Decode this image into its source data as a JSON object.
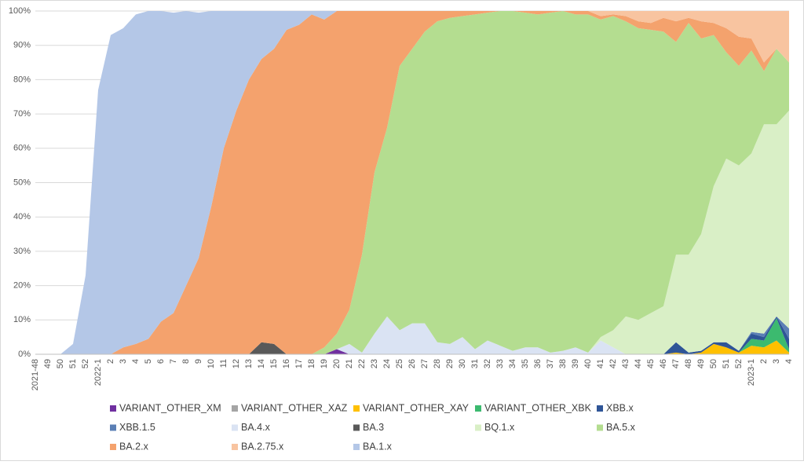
{
  "chart_data": {
    "type": "stacked_area",
    "categories": [
      "2021-48",
      "49",
      "50",
      "51",
      "52",
      "2022-1",
      "2",
      "3",
      "4",
      "5",
      "6",
      "7",
      "8",
      "9",
      "10",
      "11",
      "12",
      "13",
      "14",
      "15",
      "16",
      "17",
      "18",
      "19",
      "20",
      "21",
      "22",
      "23",
      "24",
      "25",
      "26",
      "27",
      "28",
      "29",
      "30",
      "31",
      "32",
      "33",
      "34",
      "35",
      "36",
      "37",
      "38",
      "39",
      "40",
      "41",
      "42",
      "43",
      "44",
      "45",
      "46",
      "47",
      "48",
      "49",
      "50",
      "51",
      "52",
      "2023-1",
      "2",
      "3",
      "4"
    ],
    "ylim": [
      0,
      100
    ],
    "yticks": [
      {
        "value": 0,
        "label": "0%"
      },
      {
        "value": 10,
        "label": "10%"
      },
      {
        "value": 20,
        "label": "20%"
      },
      {
        "value": 30,
        "label": "30%"
      },
      {
        "value": 40,
        "label": "40%"
      },
      {
        "value": 50,
        "label": "50%"
      },
      {
        "value": 60,
        "label": "60%"
      },
      {
        "value": 70,
        "label": "70%"
      },
      {
        "value": 80,
        "label": "80%"
      },
      {
        "value": 90,
        "label": "90%"
      },
      {
        "value": 100,
        "label": "100%"
      }
    ],
    "grid": true,
    "legend": "bottom",
    "series": [
      {
        "name": "VARIANT_OTHER_XM",
        "color": "#7030a0",
        "values": [
          0,
          0,
          0,
          0,
          0,
          0,
          0,
          0,
          0,
          0,
          0,
          0,
          0,
          0,
          0,
          0,
          0,
          0,
          0,
          0,
          0,
          0,
          0,
          0,
          1.5,
          0,
          0,
          0,
          0,
          0,
          0,
          0,
          0,
          0,
          0,
          0,
          0,
          0,
          0,
          0,
          0,
          0,
          0,
          0,
          0,
          0,
          0,
          0,
          0,
          0,
          0,
          0,
          0,
          0,
          0,
          0,
          0,
          0,
          0,
          0,
          0
        ]
      },
      {
        "name": "VARIANT_OTHER_XAZ",
        "color": "#a5a5a5",
        "values": [
          0,
          0,
          0,
          0,
          0,
          0,
          0,
          0,
          0,
          0,
          0,
          0,
          0,
          0,
          0,
          0,
          0,
          0,
          0,
          0,
          0,
          0,
          0,
          0,
          0,
          0,
          0,
          0,
          0,
          0,
          0,
          0,
          0,
          0,
          0,
          0,
          0,
          0,
          0,
          0,
          0,
          0,
          0,
          0,
          0,
          0,
          0,
          0,
          0,
          0,
          0,
          0,
          0,
          0,
          0,
          0,
          0,
          0,
          0,
          0,
          0
        ]
      },
      {
        "name": "VARIANT_OTHER_XAY",
        "color": "#ffc000",
        "values": [
          0,
          0,
          0,
          0,
          0,
          0,
          0,
          0,
          0,
          0,
          0,
          0,
          0,
          0,
          0,
          0,
          0,
          0,
          0,
          0,
          0,
          0,
          0,
          0,
          0,
          0,
          0,
          0,
          0,
          0,
          0,
          0,
          0,
          0,
          0,
          0,
          0,
          0,
          0,
          0,
          0,
          0,
          0,
          0,
          0,
          0,
          0,
          0,
          0,
          0,
          0,
          0.5,
          0,
          0.5,
          3,
          2,
          0.5,
          2.5,
          2,
          4,
          0.5
        ]
      },
      {
        "name": "VARIANT_OTHER_XBK",
        "color": "#3cba6f",
        "values": [
          0,
          0,
          0,
          0,
          0,
          0,
          0,
          0,
          0,
          0,
          0,
          0,
          0,
          0,
          0,
          0,
          0,
          0,
          0,
          0,
          0,
          0,
          0,
          0,
          0,
          0,
          0,
          0,
          0,
          0,
          0,
          0,
          0,
          0,
          0,
          0,
          0,
          0,
          0,
          0,
          0,
          0,
          0,
          0,
          0,
          0,
          0,
          0,
          0,
          0,
          0,
          0,
          0,
          0,
          0,
          0,
          0,
          2,
          2,
          6.5,
          1
        ]
      },
      {
        "name": "XBB.x",
        "color": "#2f5597",
        "values": [
          0,
          0,
          0,
          0,
          0,
          0,
          0,
          0,
          0,
          0,
          0,
          0,
          0,
          0,
          0,
          0,
          0,
          0,
          0,
          0,
          0,
          0,
          0,
          0,
          0,
          0,
          0,
          0,
          0,
          0,
          0,
          0,
          0,
          0,
          0,
          0,
          0,
          0,
          0,
          0,
          0,
          0,
          0,
          0,
          0,
          0,
          0,
          0,
          0,
          0,
          0,
          3,
          0.5,
          0.5,
          0.5,
          1.5,
          0.5,
          1.5,
          1,
          0.5,
          3
        ]
      },
      {
        "name": "XBB.1.5",
        "color": "#5b7fb5",
        "values": [
          0,
          0,
          0,
          0,
          0,
          0,
          0,
          0,
          0,
          0,
          0,
          0,
          0,
          0,
          0,
          0,
          0,
          0,
          0,
          0,
          0,
          0,
          0,
          0,
          0,
          0,
          0,
          0,
          0,
          0,
          0,
          0,
          0,
          0,
          0,
          0,
          0,
          0,
          0,
          0,
          0,
          0,
          0,
          0,
          0,
          0,
          0,
          0,
          0,
          0,
          0,
          0,
          0,
          0,
          0,
          0,
          0,
          0.5,
          1,
          0,
          3
        ]
      },
      {
        "name": "BA.4.x",
        "color": "#dae3f3",
        "values": [
          0,
          0,
          0,
          0,
          0,
          0,
          0,
          0,
          0,
          0,
          0,
          0,
          0,
          0,
          0,
          0,
          0,
          0,
          0,
          0,
          0,
          0,
          0,
          0,
          0,
          3,
          0.5,
          6,
          11,
          7,
          9,
          9,
          3.5,
          3,
          5,
          1.5,
          4,
          2.5,
          1,
          2,
          2,
          0.5,
          1,
          2,
          0.5,
          4,
          2,
          0,
          0,
          0,
          0,
          0,
          0,
          0,
          0,
          0,
          0,
          0,
          0,
          0,
          0
        ]
      },
      {
        "name": "BA.3",
        "color": "#595959",
        "values": [
          0,
          0,
          0,
          0,
          0,
          0,
          0,
          0,
          0,
          0,
          0,
          0,
          0,
          0,
          0,
          0,
          0,
          0,
          3.5,
          3,
          0,
          0,
          0,
          0,
          0,
          0,
          0,
          0,
          0,
          0,
          0,
          0,
          0,
          0,
          0,
          0,
          0,
          0,
          0,
          0,
          0,
          0,
          0,
          0,
          0,
          0,
          0,
          0,
          0,
          0,
          0,
          0,
          0,
          0,
          0,
          0,
          0,
          0,
          0,
          0,
          0
        ]
      },
      {
        "name": "BQ.1.x",
        "color": "#d9efc6",
        "values": [
          0,
          0,
          0,
          0,
          0,
          0,
          0,
          0,
          0,
          0,
          0,
          0,
          0,
          0,
          0,
          0,
          0,
          0,
          0,
          0,
          0,
          0,
          0,
          0,
          0,
          0,
          0,
          0,
          0,
          0,
          0,
          0,
          0,
          0,
          0,
          0,
          0,
          0,
          0,
          0,
          0,
          0,
          0,
          0,
          0,
          1,
          5,
          11,
          10,
          12,
          14,
          25.5,
          28.5,
          34,
          45.5,
          53.5,
          54,
          52,
          61,
          56,
          63.5
        ]
      },
      {
        "name": "BA.5.x",
        "color": "#b4dd90",
        "values": [
          0,
          0,
          0,
          0,
          0,
          0,
          0,
          0,
          0,
          0,
          0,
          0,
          0,
          0,
          0,
          0,
          0,
          0,
          0,
          0,
          0,
          0,
          0,
          2,
          4.5,
          10,
          28.5,
          47,
          55,
          77,
          80,
          85,
          93.5,
          95,
          93.5,
          97.5,
          95.5,
          97.5,
          99,
          97.5,
          97,
          99,
          99,
          97,
          98.5,
          92.5,
          91.5,
          86,
          85,
          82.5,
          80,
          62,
          67.5,
          57,
          44,
          31,
          29,
          30,
          15.5,
          22,
          14
        ]
      },
      {
        "name": "BA.2.x",
        "color": "#f4a26d",
        "values": [
          0,
          0,
          0,
          0,
          0,
          0,
          0,
          2,
          3,
          4.5,
          9.5,
          12,
          20,
          28,
          43,
          60,
          71,
          80,
          82.5,
          86,
          94.5,
          96,
          99,
          95.5,
          94,
          87,
          71,
          47,
          34,
          16,
          11,
          6,
          3,
          2,
          1.5,
          1,
          0.5,
          0,
          0,
          0.5,
          1,
          0.5,
          0,
          1,
          1,
          1,
          0.5,
          1.5,
          2,
          2,
          4,
          6,
          1.5,
          5,
          3.5,
          7,
          8.5,
          3.5,
          2.5,
          0,
          0
        ]
      },
      {
        "name": "BA.2.75.x",
        "color": "#f8c4a0",
        "values": [
          0,
          0,
          0,
          0,
          0,
          0,
          0,
          0,
          0,
          0,
          0,
          0,
          0,
          0,
          0,
          0,
          0,
          0,
          0,
          0,
          0,
          0,
          0,
          0,
          0,
          0,
          0,
          0,
          0,
          0,
          0,
          0,
          0,
          0,
          0,
          0,
          0,
          0,
          0,
          0,
          0,
          0,
          0,
          0,
          0,
          1.5,
          1,
          1.5,
          3,
          3.5,
          2,
          3,
          2,
          3,
          3.5,
          5,
          7.5,
          8,
          15,
          11,
          15
        ]
      },
      {
        "name": "BA.1.x",
        "color": "#b4c7e7",
        "values": [
          0,
          0,
          0,
          3,
          23,
          77,
          93,
          93,
          96,
          95.5,
          90.5,
          87.5,
          80,
          71.5,
          57,
          40,
          29,
          20,
          14,
          11,
          5.5,
          4,
          1,
          2.5,
          0,
          0,
          0,
          0,
          0,
          0,
          0,
          0,
          0,
          0,
          0,
          0,
          0,
          0,
          0,
          0,
          0,
          0,
          0,
          0,
          0,
          0,
          0,
          0,
          0,
          0,
          0,
          0,
          0,
          0,
          0,
          0,
          0,
          0,
          0,
          0,
          0
        ]
      }
    ]
  }
}
